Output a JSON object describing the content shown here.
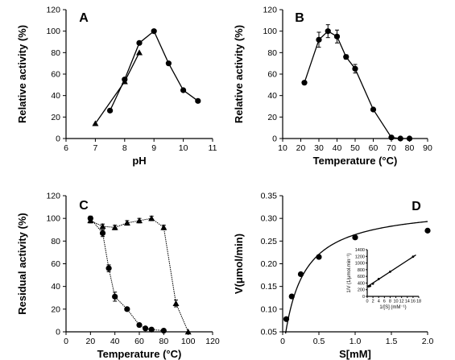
{
  "chart_data": [
    {
      "panel": "A",
      "type": "line",
      "xlabel": "pH",
      "ylabel": "Relative activity (%)",
      "xlim": [
        6,
        11
      ],
      "ylim": [
        0,
        120
      ],
      "xticks": [
        6,
        7,
        8,
        9,
        10,
        11
      ],
      "yticks": [
        0,
        20,
        40,
        60,
        80,
        100,
        120
      ],
      "series": [
        {
          "marker": "circle",
          "style": "solid",
          "x": [
            7.5,
            8,
            8.5,
            9,
            9.5,
            10,
            10.5
          ],
          "y": [
            26,
            55,
            89,
            100,
            70,
            45,
            35
          ]
        },
        {
          "marker": "triangle",
          "style": "solid",
          "x": [
            7,
            8,
            8.5
          ],
          "y": [
            14,
            53,
            80
          ]
        }
      ]
    },
    {
      "panel": "B",
      "type": "line",
      "xlabel": "Temperature (°C)",
      "ylabel": "Relative activity (%)",
      "xlim": [
        10,
        90
      ],
      "ylim": [
        0,
        120
      ],
      "xticks": [
        10,
        20,
        30,
        40,
        50,
        60,
        70,
        80,
        90
      ],
      "yticks": [
        0,
        20,
        40,
        60,
        80,
        100,
        120
      ],
      "series": [
        {
          "marker": "circle",
          "style": "solid",
          "x": [
            22,
            30,
            35,
            40,
            45,
            50,
            60,
            70,
            75,
            80
          ],
          "y": [
            52,
            92,
            100,
            95,
            76,
            65,
            27,
            1,
            0,
            0
          ],
          "err": [
            0,
            7,
            6,
            6,
            2,
            4,
            1,
            1,
            0,
            0
          ]
        }
      ]
    },
    {
      "panel": "C",
      "type": "line",
      "xlabel": "Temperature (°C)",
      "ylabel": "Residual activity (%)",
      "xlim": [
        0,
        120
      ],
      "ylim": [
        0,
        120
      ],
      "xticks": [
        0,
        20,
        40,
        60,
        80,
        100,
        120
      ],
      "yticks": [
        0,
        20,
        40,
        60,
        80,
        100,
        120
      ],
      "series": [
        {
          "marker": "circle",
          "style": "dotted",
          "x": [
            20,
            30,
            35,
            40,
            50,
            60,
            65,
            70,
            80
          ],
          "y": [
            100,
            87,
            56,
            31,
            20,
            6,
            3,
            2,
            1
          ],
          "err": [
            2,
            3,
            3,
            4,
            0,
            0,
            0,
            0,
            0
          ]
        },
        {
          "marker": "triangle",
          "style": "dotted",
          "x": [
            20,
            30,
            40,
            50,
            60,
            70,
            80,
            90,
            100
          ],
          "y": [
            98,
            93,
            92,
            96,
            98,
            100,
            92,
            25,
            0
          ],
          "err": [
            2,
            2,
            2,
            2,
            2,
            2,
            2,
            3,
            0
          ]
        }
      ]
    },
    {
      "panel": "D",
      "type": "scatter",
      "xlabel": "S[mM]",
      "ylabel": "V(μmol/min)",
      "xlim": [
        0,
        2.0
      ],
      "ylim": [
        0.05,
        0.35
      ],
      "xticks": [
        0,
        0.5,
        1.0,
        1.5,
        2.0
      ],
      "xtick_labels": [
        "0",
        "0.5",
        "1.0",
        "1.5",
        "2.0"
      ],
      "yticks": [
        0.05,
        0.1,
        0.15,
        0.2,
        0.25,
        0.3,
        0.35
      ],
      "ytick_labels": [
        "0.05",
        "0.10",
        "0.15",
        "0.20",
        "0.25",
        "0.30",
        "0.35"
      ],
      "points": {
        "x": [
          0.05,
          0.125,
          0.25,
          0.5,
          1.0,
          2.0
        ],
        "y": [
          0.078,
          0.128,
          0.177,
          0.215,
          0.258,
          0.273
        ]
      },
      "fit": {
        "model": "michaelis-menten",
        "vmax": 0.329,
        "km": 0.245
      },
      "inset": {
        "type": "scatter",
        "xlabel": "1/[S] (mM⁻¹)",
        "ylabel": "1/V (1/μmol.min⁻¹)",
        "xlim": [
          0,
          18
        ],
        "ylim": [
          0,
          1400
        ],
        "xticks": [
          0,
          2,
          4,
          6,
          8,
          10,
          12,
          14,
          16,
          18
        ],
        "yticks": [
          0,
          200,
          400,
          600,
          800,
          1000,
          1200,
          1400
        ],
        "points": {
          "x": [
            0.5,
            1,
            2,
            4,
            8,
            16
          ],
          "y": [
            300,
            310,
            380,
            520,
            740,
            1190
          ]
        },
        "fit": {
          "slope": 56,
          "intercept": 290
        }
      }
    }
  ]
}
